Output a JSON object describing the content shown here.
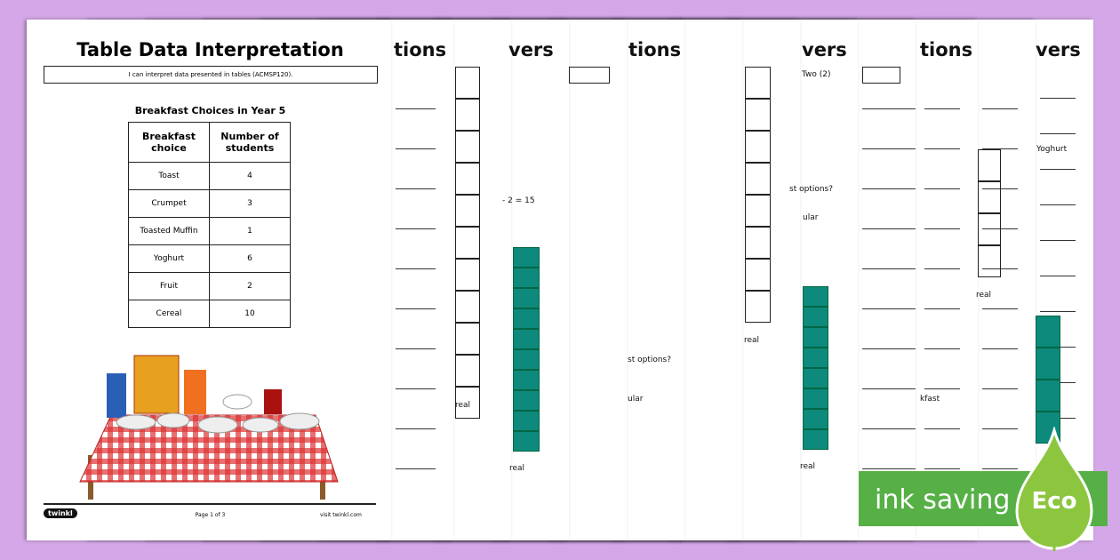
{
  "worksheet": {
    "title": "Table Data Interpretation",
    "objective": "I can interpret data presented in tables (ACMSP120).",
    "table_title": "Breakfast Choices in Year 5",
    "table": {
      "headers": [
        "Breakfast choice",
        "Number of students"
      ],
      "rows": [
        [
          "Toast",
          4
        ],
        [
          "Crumpet",
          3
        ],
        [
          "Toasted Muffin",
          1
        ],
        [
          "Yoghurt",
          6
        ],
        [
          "Fruit",
          2
        ],
        [
          "Cereal",
          10
        ]
      ]
    },
    "footer": {
      "brand": "twinkl",
      "page": "Page 1 of 3",
      "site": "visit twinkl.com"
    }
  },
  "background_fragments": [
    "tions",
    "vers",
    "tions",
    "vers",
    "tions",
    "vers",
    "- 2 = 15",
    "real",
    "real",
    "st options?",
    "ular",
    "Two (2)",
    "st options?",
    "ular",
    "real",
    "real",
    "Yoghurt",
    "real",
    "kfast"
  ],
  "badge": {
    "text": "ink saving",
    "label": "Eco"
  }
}
